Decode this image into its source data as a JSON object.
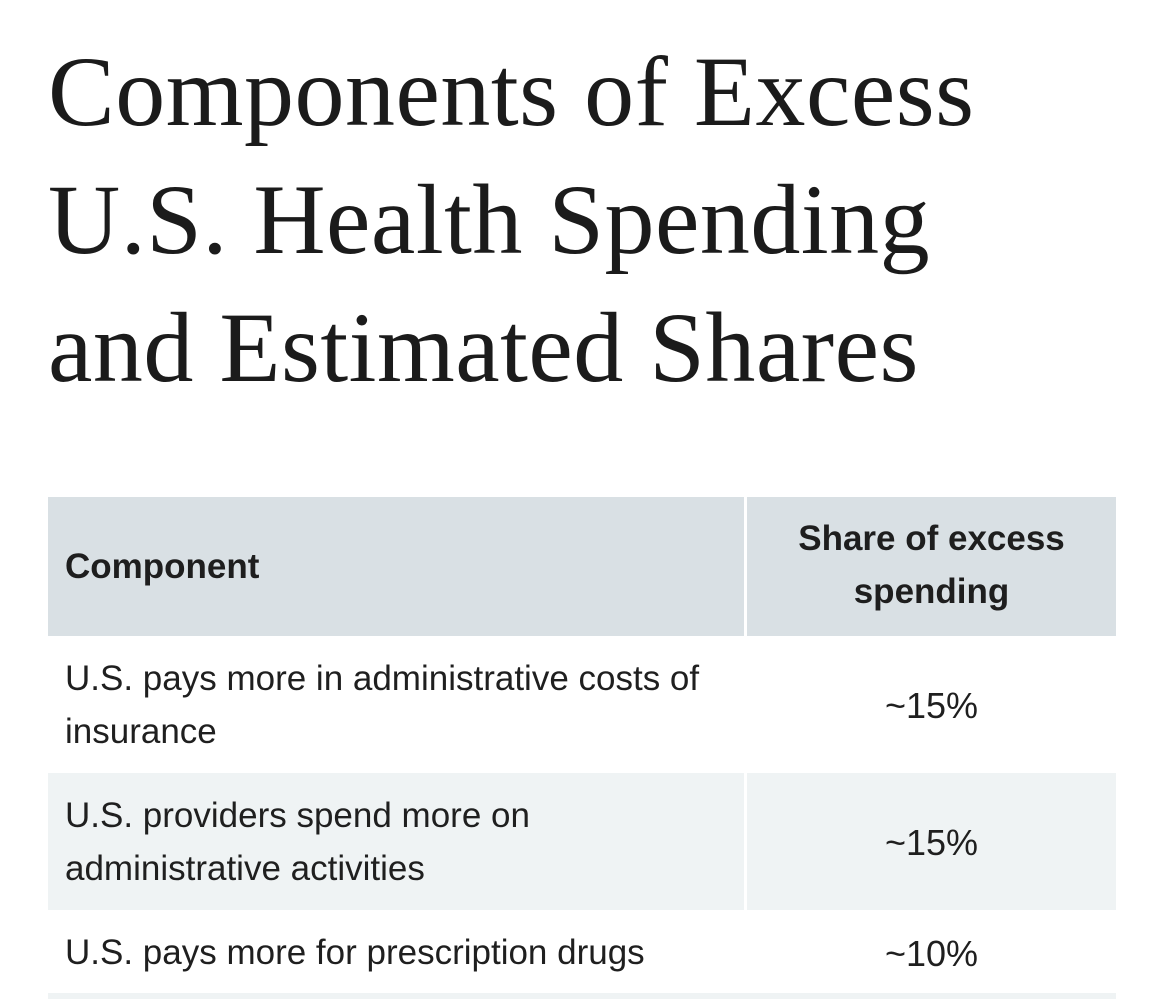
{
  "title_lines": [
    "Components of Excess",
    "U.S. Health Spending",
    "and Estimated Shares"
  ],
  "table": {
    "headers": {
      "component": "Component",
      "share": "Share of excess spending"
    },
    "rows": [
      {
        "component": "U.S. pays more in administrative costs of insurance",
        "share": "~15%"
      },
      {
        "component": "U.S. providers spend more on administrative activities",
        "share": "~15%"
      },
      {
        "component": "U.S. pays more for prescription drugs",
        "share": "~10%"
      }
    ]
  },
  "colors": {
    "header_bg": "#d9e0e4",
    "alt_row_bg": "#eff3f4",
    "text": "#1c1c1c"
  }
}
